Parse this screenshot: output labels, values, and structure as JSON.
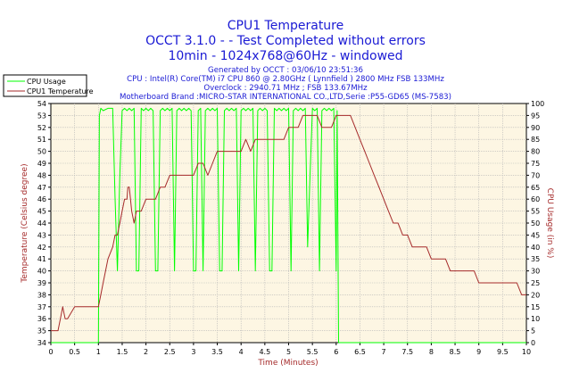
{
  "title_lines": [
    "CPU1 Temperature",
    "OCCT 3.1.0 -  - Test Completed without errors",
    "10min - 1024x768@60Hz - windowed"
  ],
  "info_lines": [
    "Generated by OCCT : 03/06/10 23:51:36",
    "CPU : Intel(R) Core(TM) i7 CPU 860 @ 2.80GHz ( Lynnfield ) 2800 MHz FSB 133MHz",
    "Overclock : 2940.71 MHz ; FSB 133.67MHz",
    "Motherboard Brand :MICRO-STAR INTERNATIONAL CO.,LTD,Serie :P55-GD65 (MS-7583)"
  ],
  "colors": {
    "plot_bg": "#fdf6e3",
    "grid": "#b4b4b4",
    "cpu_usage": "#00ff00",
    "cpu_temp": "#a52a2a",
    "title": "#1a1ad4",
    "axis_left": "#a52a2a",
    "axis_right": "#a52a2a",
    "axis_bottom": "#a52a2a"
  },
  "chart_data": {
    "type": "line",
    "xlabel": "Time (Minutes)",
    "ylabel_left": "Temperature (Celsius degree)",
    "ylabel_right": "CPU Usage (in %)",
    "xlim": [
      0,
      10
    ],
    "ylim_left": [
      34,
      54
    ],
    "ylim_right": [
      0,
      100
    ],
    "x_ticks": [
      0,
      0.5,
      1,
      1.5,
      2,
      2.5,
      3,
      3.5,
      4,
      4.5,
      5,
      5.5,
      6,
      6.5,
      7,
      7.5,
      8,
      8.5,
      9,
      9.5,
      10
    ],
    "y_ticks_left": [
      34,
      35,
      36,
      37,
      38,
      39,
      40,
      41,
      42,
      43,
      44,
      45,
      46,
      47,
      48,
      49,
      50,
      51,
      52,
      53,
      54
    ],
    "y_ticks_right": [
      0,
      5,
      10,
      15,
      20,
      25,
      30,
      35,
      40,
      45,
      50,
      55,
      60,
      65,
      70,
      75,
      80,
      85,
      90,
      95,
      100
    ],
    "grid": true,
    "legend": "top-left",
    "series": [
      {
        "name": "CPU Usage",
        "axis": "right",
        "x": [
          0,
          1,
          1.02,
          1.05,
          1.1,
          1.2,
          1.3,
          1.35,
          1.4,
          1.45,
          1.5,
          1.55,
          1.6,
          1.65,
          1.7,
          1.75,
          1.8,
          1.85,
          1.9,
          1.95,
          2.0,
          2.05,
          2.1,
          2.15,
          2.2,
          2.25,
          2.3,
          2.35,
          2.4,
          2.45,
          2.5,
          2.55,
          2.6,
          2.65,
          2.7,
          2.75,
          2.8,
          2.85,
          2.9,
          2.95,
          3.0,
          3.05,
          3.1,
          3.15,
          3.2,
          3.25,
          3.3,
          3.35,
          3.4,
          3.45,
          3.5,
          3.55,
          3.6,
          3.65,
          3.7,
          3.75,
          3.8,
          3.85,
          3.9,
          3.95,
          4.0,
          4.05,
          4.1,
          4.15,
          4.2,
          4.25,
          4.3,
          4.35,
          4.4,
          4.45,
          4.5,
          4.55,
          4.6,
          4.65,
          4.7,
          4.75,
          4.8,
          4.85,
          4.9,
          4.95,
          5.0,
          5.05,
          5.1,
          5.15,
          5.2,
          5.25,
          5.3,
          5.35,
          5.4,
          5.45,
          5.5,
          5.55,
          5.6,
          5.65,
          5.7,
          5.75,
          5.8,
          5.85,
          5.9,
          5.95,
          6.0,
          6.02,
          6.05,
          10
        ],
        "y": [
          0,
          0,
          95,
          98,
          97,
          98,
          98,
          60,
          30,
          70,
          97,
          98,
          97,
          98,
          97,
          98,
          30,
          30,
          98,
          97,
          98,
          97,
          98,
          97,
          30,
          30,
          97,
          98,
          97,
          98,
          97,
          98,
          30,
          97,
          98,
          97,
          98,
          97,
          98,
          97,
          30,
          30,
          97,
          98,
          30,
          97,
          98,
          97,
          98,
          97,
          98,
          30,
          30,
          97,
          98,
          97,
          98,
          97,
          98,
          30,
          97,
          98,
          97,
          98,
          97,
          98,
          30,
          97,
          98,
          97,
          98,
          97,
          30,
          30,
          98,
          97,
          98,
          97,
          98,
          97,
          98,
          30,
          97,
          98,
          97,
          98,
          97,
          98,
          40,
          70,
          98,
          97,
          98,
          30,
          97,
          98,
          97,
          98,
          97,
          98,
          30,
          97,
          0,
          0
        ]
      },
      {
        "name": "CPU1 Temperature",
        "axis": "left",
        "x": [
          0,
          0.15,
          0.2,
          0.25,
          0.3,
          0.35,
          0.5,
          0.6,
          0.7,
          0.8,
          0.9,
          1.0,
          1.05,
          1.1,
          1.15,
          1.2,
          1.3,
          1.35,
          1.4,
          1.45,
          1.5,
          1.55,
          1.6,
          1.62,
          1.65,
          1.7,
          1.75,
          1.8,
          1.85,
          1.9,
          2.0,
          2.1,
          2.2,
          2.3,
          2.4,
          2.5,
          2.6,
          2.7,
          2.8,
          2.9,
          3.0,
          3.1,
          3.2,
          3.3,
          3.4,
          3.5,
          3.6,
          3.7,
          3.8,
          3.9,
          4.0,
          4.1,
          4.2,
          4.3,
          4.4,
          4.5,
          4.6,
          4.7,
          4.8,
          4.9,
          5.0,
          5.1,
          5.2,
          5.3,
          5.4,
          5.5,
          5.6,
          5.7,
          5.8,
          5.9,
          6.0,
          6.1,
          6.2,
          6.3,
          6.4,
          6.5,
          6.6,
          6.7,
          6.8,
          6.9,
          7.0,
          7.1,
          7.2,
          7.3,
          7.4,
          7.5,
          7.6,
          7.7,
          7.8,
          7.9,
          8.0,
          8.1,
          8.2,
          8.3,
          8.4,
          8.5,
          8.6,
          8.7,
          8.8,
          8.9,
          9.0,
          9.1,
          9.2,
          9.3,
          9.4,
          9.5,
          9.6,
          9.7,
          9.8,
          9.9,
          10.0
        ],
        "y": [
          35,
          35,
          36,
          37,
          36,
          36,
          37,
          37,
          37,
          37,
          37,
          37,
          38,
          39,
          40,
          41,
          42,
          43,
          43,
          44,
          45,
          46,
          46,
          47,
          47,
          45,
          44,
          45,
          45,
          45,
          46,
          46,
          46,
          47,
          47,
          48,
          48,
          48,
          48,
          48,
          48,
          49,
          49,
          48,
          49,
          50,
          50,
          50,
          50,
          50,
          50,
          51,
          50,
          51,
          51,
          51,
          51,
          51,
          51,
          51,
          52,
          52,
          52,
          53,
          53,
          53,
          53,
          52,
          52,
          52,
          53,
          53,
          53,
          53,
          52,
          51,
          50,
          49,
          48,
          47,
          46,
          45,
          44,
          44,
          43,
          43,
          42,
          42,
          42,
          42,
          41,
          41,
          41,
          41,
          40,
          40,
          40,
          40,
          40,
          40,
          39,
          39,
          39,
          39,
          39,
          39,
          39,
          39,
          39,
          38,
          38
        ]
      }
    ]
  }
}
